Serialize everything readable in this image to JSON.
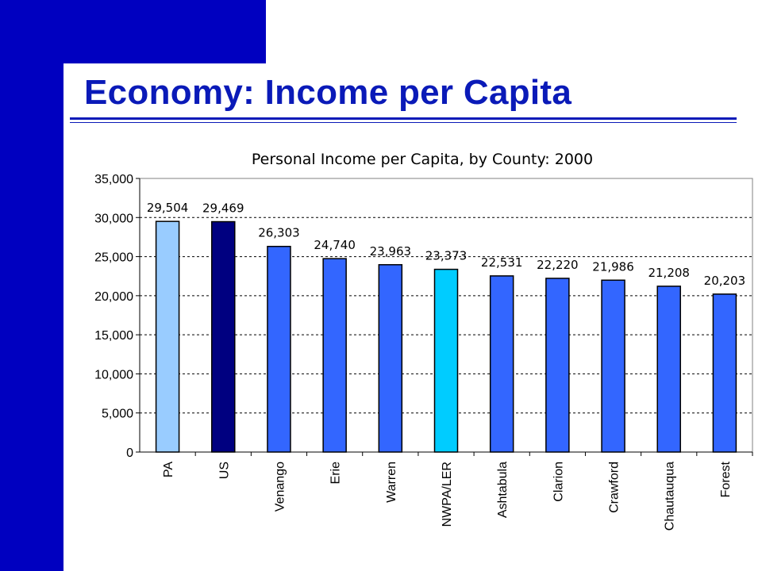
{
  "slide": {
    "title": "Economy:  Income per Capita"
  },
  "colors": {
    "brand": "#0000c0",
    "title": "#0a1ab8"
  },
  "chart_data": {
    "type": "bar",
    "title": "Personal Income per Capita, by County: 2000",
    "xlabel": "",
    "ylabel": "",
    "ylim": [
      0,
      35000
    ],
    "yticks": [
      0,
      5000,
      10000,
      15000,
      20000,
      25000,
      30000,
      35000
    ],
    "ytick_labels": [
      "0",
      "5,000",
      "10,000",
      "15,000",
      "20,000",
      "25,000",
      "30,000",
      "35,000"
    ],
    "grid": true,
    "legend": "none",
    "categories": [
      "PA",
      "US",
      "Venango",
      "Erie",
      "Warren",
      "NWPA/LER",
      "Ashtabula",
      "Clarion",
      "Crawford",
      "Chautauqua",
      "Forest"
    ],
    "values": [
      29504,
      29469,
      26303,
      24740,
      23963,
      23373,
      22531,
      22220,
      21986,
      21208,
      20203
    ],
    "data_labels": [
      "29,504",
      "29,469",
      "26,303",
      "24,740",
      "23,963",
      "23,373",
      "22,531",
      "22,220",
      "21,986",
      "21,208",
      "20,203"
    ],
    "bar_colors": [
      "#99ccff",
      "#000080",
      "#3366ff",
      "#3366ff",
      "#3366ff",
      "#00ccff",
      "#3366ff",
      "#3366ff",
      "#3366ff",
      "#3366ff",
      "#3366ff"
    ]
  }
}
